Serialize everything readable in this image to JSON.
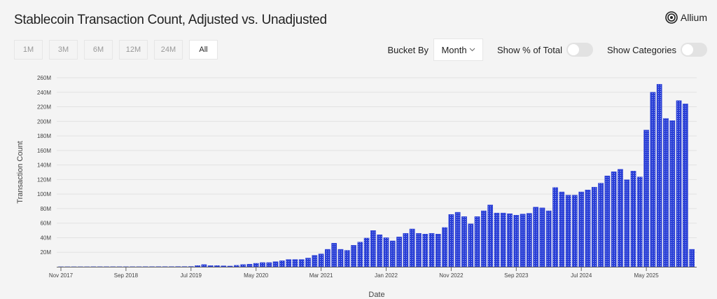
{
  "header": {
    "title": "Stablecoin Transaction Count, Adjusted vs. Unadjusted",
    "brand": "Allium"
  },
  "ranges": [
    {
      "label": "1M"
    },
    {
      "label": "3M"
    },
    {
      "label": "6M"
    },
    {
      "label": "12M"
    },
    {
      "label": "24M"
    },
    {
      "label": "All",
      "active": true
    }
  ],
  "controls": {
    "bucket_label": "Bucket By",
    "bucket_value": "Month",
    "pct_label": "Show % of Total",
    "pct_on": false,
    "cat_label": "Show Categories",
    "cat_on": false
  },
  "colors": {
    "bar": "#2a3fd6",
    "bar_dot": "#a8b4f0"
  },
  "chart_data": {
    "type": "bar",
    "xlabel": "Date",
    "ylabel": "Transaction Count",
    "ylim": [
      0,
      260000000
    ],
    "yticks": [
      "20M",
      "40M",
      "60M",
      "80M",
      "100M",
      "120M",
      "140M",
      "160M",
      "180M",
      "200M",
      "220M",
      "240M",
      "260M"
    ],
    "xticks": [
      "Nov 2017",
      "Sep 2018",
      "Jul 2019",
      "May 2020",
      "Mar 2021",
      "Jan 2022",
      "Nov 2022",
      "Sep 2023",
      "Jul 2024",
      "May 2025"
    ],
    "grid": true,
    "start_month": "Nov 2017",
    "end_month": "Dec 2025",
    "values_millions": [
      0.05,
      0.05,
      0.05,
      0.05,
      0.05,
      0.1,
      0.1,
      0.1,
      0.1,
      0.1,
      0.1,
      0.1,
      0.1,
      0.15,
      0.15,
      0.2,
      0.2,
      0.2,
      0.3,
      0.3,
      0.4,
      1.6,
      3,
      1.6,
      1.6,
      1.3,
      1,
      2,
      3,
      3.5,
      4.8,
      5.8,
      5.8,
      7,
      8.3,
      10,
      10,
      10,
      12,
      15.7,
      17.7,
      24,
      32.4,
      24,
      22.6,
      29.5,
      34,
      39.5,
      49.8,
      44,
      40,
      35.6,
      41,
      46,
      52,
      46,
      45,
      46,
      45,
      54,
      72,
      75,
      69,
      59,
      69,
      77,
      85,
      74,
      74,
      73,
      71,
      72.5,
      73.5,
      82,
      81,
      77,
      109,
      103,
      98.5,
      98.5,
      103,
      105.7,
      109.5,
      115,
      125,
      130.7,
      134,
      119.6,
      131.6,
      123.6,
      188,
      240,
      251,
      204,
      201,
      228.5,
      224,
      24
    ]
  }
}
